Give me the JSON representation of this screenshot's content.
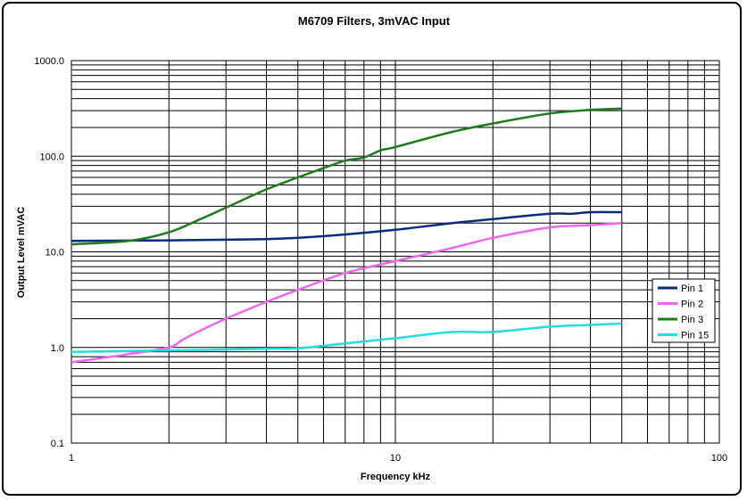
{
  "chart_data": {
    "type": "line",
    "title": "M6709 Filters, 3mVAC Input",
    "xlabel": "Frequency kHz",
    "ylabel": "Output Level mVAC",
    "x_scale": "log",
    "y_scale": "log",
    "xlim": [
      1,
      100
    ],
    "ylim": [
      0.1,
      1000
    ],
    "grid": true,
    "legend_position": "right",
    "x_ticks": [
      {
        "value": 1,
        "label": "1"
      },
      {
        "value": 10,
        "label": "10"
      },
      {
        "value": 100,
        "label": "100"
      }
    ],
    "y_ticks": [
      {
        "value": 0.1,
        "label": "0.1"
      },
      {
        "value": 1,
        "label": "1.0"
      },
      {
        "value": 10,
        "label": "10.0"
      },
      {
        "value": 100,
        "label": "100.0"
      },
      {
        "value": 1000,
        "label": "1000.0"
      }
    ],
    "series": [
      {
        "name": "Pin 1",
        "color": "#0a2a7a",
        "x": [
          1,
          1.5,
          2,
          3,
          4,
          5,
          7,
          10,
          15,
          20,
          30,
          35,
          40,
          50
        ],
        "y": [
          13,
          13.1,
          13.2,
          13.4,
          13.6,
          14,
          15.2,
          17,
          20,
          22,
          25,
          25,
          26,
          26
        ]
      },
      {
        "name": "Pin 2",
        "color": "#ee66ee",
        "x": [
          1,
          1.5,
          2,
          2.2,
          2.5,
          3,
          4,
          5,
          7,
          10,
          15,
          20,
          30,
          40,
          50
        ],
        "y": [
          0.7,
          0.85,
          1.0,
          1.2,
          1.5,
          2.0,
          3.0,
          4.0,
          6.0,
          8.0,
          11,
          14,
          18,
          19,
          20
        ]
      },
      {
        "name": "Pin 3",
        "color": "#1f7a1f",
        "x": [
          1,
          1.5,
          2,
          2.5,
          3,
          4,
          5,
          6,
          7,
          8,
          9,
          10,
          15,
          20,
          30,
          40,
          50
        ],
        "y": [
          12,
          13,
          16,
          22,
          29,
          45,
          60,
          75,
          90,
          97,
          115,
          125,
          180,
          220,
          280,
          305,
          315
        ]
      },
      {
        "name": "Pin 15",
        "color": "#22dddd",
        "x": [
          1,
          2,
          3,
          4,
          5,
          7,
          10,
          15,
          20,
          30,
          40,
          50
        ],
        "y": [
          0.9,
          0.93,
          0.95,
          0.97,
          0.98,
          1.1,
          1.25,
          1.45,
          1.45,
          1.65,
          1.72,
          1.78
        ]
      }
    ]
  }
}
